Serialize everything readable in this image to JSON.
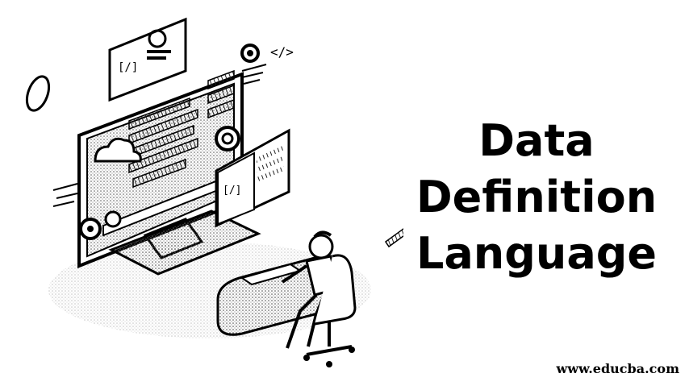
{
  "heading": {
    "line1": "Data",
    "line2": "Definition",
    "line3": "Language"
  },
  "illustration": {
    "subject": "person at desk with computer monitor, code panels and gears",
    "icons": [
      "monitor-icon",
      "gear-icon",
      "code-tag-icon",
      "cloud-icon",
      "person-icon",
      "office-chair-icon"
    ],
    "code_tags": [
      "[/]",
      "</>",
      "[/]"
    ]
  },
  "watermark": "www.educba.com",
  "colors": {
    "ink": "#000000",
    "background": "#ffffff"
  }
}
